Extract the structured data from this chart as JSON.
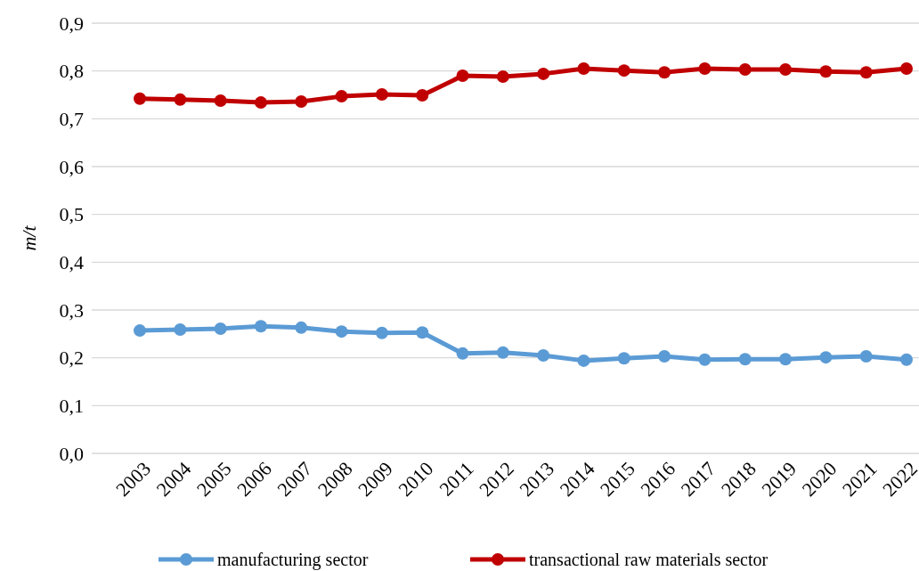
{
  "chart_data": {
    "type": "line",
    "ylabel": "m/t",
    "categories": [
      "2003",
      "2004",
      "2005",
      "2006",
      "2007",
      "2008",
      "2009",
      "2010",
      "2011",
      "2012",
      "2013",
      "2014",
      "2015",
      "2016",
      "2017",
      "2018",
      "2019",
      "2020",
      "2021",
      "2022"
    ],
    "series": [
      {
        "name": "manufacturing sector",
        "color": "#5b9bd5",
        "values": [
          0.257,
          0.259,
          0.261,
          0.266,
          0.263,
          0.255,
          0.252,
          0.253,
          0.209,
          0.211,
          0.205,
          0.194,
          0.199,
          0.203,
          0.196,
          0.197,
          0.197,
          0.201,
          0.203,
          0.196
        ]
      },
      {
        "name": "transactional raw materials sector",
        "color": "#c00000",
        "values": [
          0.742,
          0.74,
          0.738,
          0.734,
          0.736,
          0.747,
          0.751,
          0.749,
          0.79,
          0.788,
          0.794,
          0.805,
          0.801,
          0.797,
          0.805,
          0.803,
          0.803,
          0.799,
          0.797,
          0.805
        ]
      }
    ],
    "ylim": [
      0,
      0.9
    ],
    "yticks": [
      {
        "value": 0,
        "label": "0,0"
      },
      {
        "value": 0.1,
        "label": "0,1"
      },
      {
        "value": 0.2,
        "label": "0,2"
      },
      {
        "value": 0.3,
        "label": "0,3"
      },
      {
        "value": 0.4,
        "label": "0,4"
      },
      {
        "value": 0.5,
        "label": "0,5"
      },
      {
        "value": 0.6,
        "label": "0,6"
      },
      {
        "value": 0.7,
        "label": "0,7"
      },
      {
        "value": 0.8,
        "label": "0,8"
      },
      {
        "value": 0.9,
        "label": "0,9"
      }
    ],
    "grid": "y",
    "legend": "bottom",
    "marker": "circle",
    "line_style": "solid"
  }
}
